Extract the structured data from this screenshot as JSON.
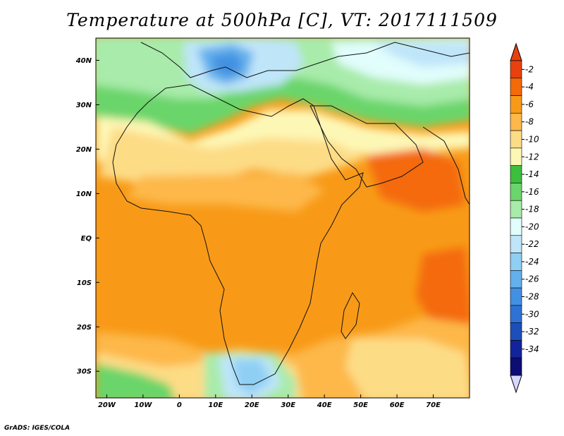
{
  "title": "Temperature at 500hPa [C], VT: 2017111509",
  "credit": "GrADS: IGES/COLA",
  "map": {
    "lat_range": [
      -36,
      45
    ],
    "lon_range": [
      -23,
      80
    ],
    "lat_ticks": [
      {
        "value": 40,
        "label": "40N"
      },
      {
        "value": 30,
        "label": "30N"
      },
      {
        "value": 20,
        "label": "20N"
      },
      {
        "value": 10,
        "label": "10N"
      },
      {
        "value": 0,
        "label": "EQ"
      },
      {
        "value": -10,
        "label": "10S"
      },
      {
        "value": -20,
        "label": "20S"
      },
      {
        "value": -30,
        "label": "30S"
      }
    ],
    "lon_ticks": [
      {
        "value": -20,
        "label": "20W"
      },
      {
        "value": -10,
        "label": "10W"
      },
      {
        "value": 0,
        "label": "0"
      },
      {
        "value": 10,
        "label": "10E"
      },
      {
        "value": 20,
        "label": "20E"
      },
      {
        "value": 30,
        "label": "30E"
      },
      {
        "value": 40,
        "label": "40E"
      },
      {
        "value": 50,
        "label": "50E"
      },
      {
        "value": 60,
        "label": "60E"
      },
      {
        "value": 70,
        "label": "70E"
      }
    ]
  },
  "colorbar": {
    "levels": [
      "-2",
      "-4",
      "-6",
      "-8",
      "-10",
      "-12",
      "-14",
      "-16",
      "-18",
      "-20",
      "-22",
      "-24",
      "-26",
      "-28",
      "-30",
      "-32",
      "-34"
    ],
    "colors": [
      "#e8410f",
      "#f46a08",
      "#f89a18",
      "#fdb849",
      "#fddc86",
      "#fdf7b5",
      "#3dbe3d",
      "#6ad56a",
      "#a8ebaa",
      "#e1fdfc",
      "#bfe5f9",
      "#8fcff4",
      "#63b0ec",
      "#4290e2",
      "#2f72d6",
      "#1c4fb9",
      "#13249b",
      "#0c0e73"
    ],
    "top_color": "#e8410f",
    "bottom_color": "#d7d7ff"
  }
}
